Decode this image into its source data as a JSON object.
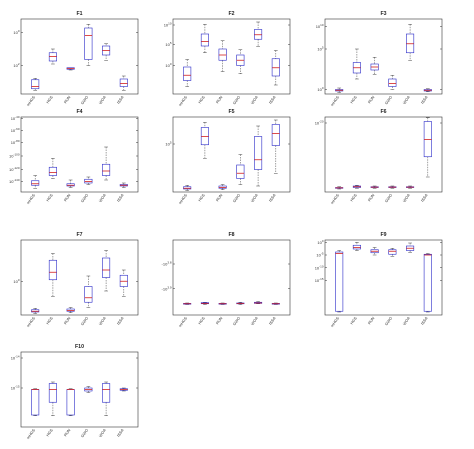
{
  "figure_title": "",
  "colors": {
    "box": "#2a2ac8",
    "median": "#d22020",
    "whisker": "#444444",
    "axis": "#333333"
  },
  "chart_data": [
    {
      "type": "boxplot",
      "title": "F1",
      "yscale": "log",
      "ylim": [
        0,
        1
      ],
      "yticks": [
        {
          "v": 0.82,
          "label": "10^0"
        },
        {
          "v": 0.38,
          "label": "10^2"
        }
      ],
      "categories": [
        "mHGS",
        "HGS",
        "RUN",
        "GWO",
        "WOA",
        "ISSA"
      ],
      "boxes": [
        {
          "wmin": 0.05,
          "q1": 0.07,
          "med": 0.1,
          "q3": 0.19,
          "wmax": 0.21
        },
        {
          "wmin": 0.4,
          "q1": 0.44,
          "med": 0.5,
          "q3": 0.55,
          "wmax": 0.6
        },
        {
          "wmin": 0.32,
          "q1": 0.33,
          "med": 0.34,
          "q3": 0.35,
          "wmax": 0.35
        },
        {
          "wmin": 0.38,
          "q1": 0.46,
          "med": 0.78,
          "q3": 0.88,
          "wmax": 0.93
        },
        {
          "wmin": 0.45,
          "q1": 0.52,
          "med": 0.58,
          "q3": 0.64,
          "wmax": 0.67
        },
        {
          "wmin": 0.05,
          "q1": 0.1,
          "med": 0.14,
          "q3": 0.2,
          "wmax": 0.24
        }
      ]
    },
    {
      "type": "boxplot",
      "title": "F2",
      "yscale": "log",
      "ylim": [
        0,
        1
      ],
      "yticks": [
        {
          "v": 0.92,
          "label": "10^10"
        },
        {
          "v": 0.66,
          "label": "10^5"
        },
        {
          "v": 0.38,
          "label": "10^0"
        }
      ],
      "categories": [
        "mHGS",
        "HGS",
        "RUN",
        "GWO",
        "WOA",
        "ISSA"
      ],
      "boxes": [
        {
          "wmin": 0.1,
          "q1": 0.18,
          "med": 0.25,
          "q3": 0.36,
          "wmax": 0.46
        },
        {
          "wmin": 0.55,
          "q1": 0.64,
          "med": 0.7,
          "q3": 0.8,
          "wmax": 0.93
        },
        {
          "wmin": 0.3,
          "q1": 0.45,
          "med": 0.52,
          "q3": 0.6,
          "wmax": 0.71
        },
        {
          "wmin": 0.27,
          "q1": 0.38,
          "med": 0.45,
          "q3": 0.52,
          "wmax": 0.59
        },
        {
          "wmin": 0.63,
          "q1": 0.73,
          "med": 0.79,
          "q3": 0.86,
          "wmax": 0.96
        },
        {
          "wmin": 0.12,
          "q1": 0.24,
          "med": 0.35,
          "q3": 0.47,
          "wmax": 0.58
        }
      ]
    },
    {
      "type": "boxplot",
      "title": "F3",
      "yscale": "log",
      "ylim": [
        0,
        1
      ],
      "yticks": [
        {
          "v": 0.9,
          "label": "10^10"
        },
        {
          "v": 0.6,
          "label": "10^5"
        },
        {
          "v": 0.06,
          "label": "10^0"
        }
      ],
      "categories": [
        "mHGS",
        "HGS",
        "RUN",
        "GWO",
        "WOA",
        "ISSA"
      ],
      "boxes": [
        {
          "wmin": 0.02,
          "q1": 0.04,
          "med": 0.05,
          "q3": 0.06,
          "wmax": 0.08
        },
        {
          "wmin": 0.2,
          "q1": 0.28,
          "med": 0.35,
          "q3": 0.42,
          "wmax": 0.6
        },
        {
          "wmin": 0.26,
          "q1": 0.32,
          "med": 0.36,
          "q3": 0.4,
          "wmax": 0.49
        },
        {
          "wmin": 0.06,
          "q1": 0.1,
          "med": 0.14,
          "q3": 0.2,
          "wmax": 0.25
        },
        {
          "wmin": 0.45,
          "q1": 0.55,
          "med": 0.67,
          "q3": 0.8,
          "wmax": 0.93
        },
        {
          "wmin": 0.03,
          "q1": 0.04,
          "med": 0.05,
          "q3": 0.06,
          "wmax": 0.07
        }
      ]
    },
    {
      "type": "boxplot",
      "title": "F4",
      "yscale": "log",
      "ylim": [
        0,
        1
      ],
      "yticks": [
        {
          "v": 0.98,
          "label": "10^-40"
        },
        {
          "v": 0.82,
          "label": "10^-60"
        },
        {
          "v": 0.66,
          "label": "10^-80"
        },
        {
          "v": 0.48,
          "label": "10^-100"
        },
        {
          "v": 0.3,
          "label": "10^-120"
        },
        {
          "v": 0.14,
          "label": "10^-140"
        }
      ],
      "categories": [
        "mHGS",
        "HGS",
        "RUN",
        "GWO",
        "WOA",
        "ISSA"
      ],
      "boxes": [
        {
          "wmin": 0.05,
          "q1": 0.09,
          "med": 0.11,
          "q3": 0.15,
          "wmax": 0.22
        },
        {
          "wmin": 0.18,
          "q1": 0.22,
          "med": 0.26,
          "q3": 0.33,
          "wmax": 0.45
        },
        {
          "wmin": 0.06,
          "q1": 0.08,
          "med": 0.09,
          "q3": 0.11,
          "wmax": 0.16
        },
        {
          "wmin": 0.1,
          "q1": 0.12,
          "med": 0.14,
          "q3": 0.17,
          "wmax": 0.2
        },
        {
          "wmin": 0.16,
          "q1": 0.22,
          "med": 0.28,
          "q3": 0.37,
          "wmax": 0.6
        },
        {
          "wmin": 0.06,
          "q1": 0.08,
          "med": 0.09,
          "q3": 0.1,
          "wmax": 0.12
        }
      ]
    },
    {
      "type": "boxplot",
      "title": "F5",
      "yscale": "log",
      "ylim": [
        0,
        1
      ],
      "yticks": [
        {
          "v": 0.64,
          "label": "10^5"
        }
      ],
      "categories": [
        "mHGS",
        "HGS",
        "RUN",
        "GWO",
        "WOA",
        "ISSA"
      ],
      "boxes": [
        {
          "wmin": 0.02,
          "q1": 0.04,
          "med": 0.05,
          "q3": 0.07,
          "wmax": 0.09
        },
        {
          "wmin": 0.45,
          "q1": 0.63,
          "med": 0.74,
          "q3": 0.86,
          "wmax": 0.93
        },
        {
          "wmin": 0.03,
          "q1": 0.05,
          "med": 0.06,
          "q3": 0.08,
          "wmax": 0.1
        },
        {
          "wmin": 0.1,
          "q1": 0.18,
          "med": 0.25,
          "q3": 0.36,
          "wmax": 0.5
        },
        {
          "wmin": 0.08,
          "q1": 0.3,
          "med": 0.43,
          "q3": 0.74,
          "wmax": 0.88
        },
        {
          "wmin": 0.25,
          "q1": 0.62,
          "med": 0.78,
          "q3": 0.9,
          "wmax": 0.96
        }
      ]
    },
    {
      "type": "boxplot",
      "title": "F6",
      "yscale": "log",
      "ylim": [
        0,
        1
      ],
      "yticks": [
        {
          "v": 0.92,
          "label": "10^-20"
        }
      ],
      "categories": [
        "mHGS",
        "HGS",
        "RUN",
        "GWO",
        "WOA",
        "ISSA"
      ],
      "boxes": [
        {
          "wmin": 0.04,
          "q1": 0.05,
          "med": 0.055,
          "q3": 0.06,
          "wmax": 0.07
        },
        {
          "wmin": 0.05,
          "q1": 0.06,
          "med": 0.07,
          "q3": 0.08,
          "wmax": 0.09
        },
        {
          "wmin": 0.05,
          "q1": 0.06,
          "med": 0.065,
          "q3": 0.07,
          "wmax": 0.08
        },
        {
          "wmin": 0.05,
          "q1": 0.06,
          "med": 0.065,
          "q3": 0.07,
          "wmax": 0.08
        },
        {
          "wmin": 0.05,
          "q1": 0.06,
          "med": 0.065,
          "q3": 0.07,
          "wmax": 0.08
        },
        {
          "wmin": 0.2,
          "q1": 0.47,
          "med": 0.7,
          "q3": 0.94,
          "wmax": 0.99
        }
      ]
    },
    {
      "type": "boxplot",
      "title": "F7",
      "yscale": "log",
      "ylim": [
        0,
        1
      ],
      "yticks": [
        {
          "v": 0.45,
          "label": "10^0"
        }
      ],
      "categories": [
        "mHGS",
        "HGS",
        "RUN",
        "GWO",
        "WOA",
        "ISSA"
      ],
      "boxes": [
        {
          "wmin": 0.02,
          "q1": 0.04,
          "med": 0.05,
          "q3": 0.07,
          "wmax": 0.09
        },
        {
          "wmin": 0.25,
          "q1": 0.47,
          "med": 0.57,
          "q3": 0.73,
          "wmax": 0.82
        },
        {
          "wmin": 0.03,
          "q1": 0.05,
          "med": 0.06,
          "q3": 0.08,
          "wmax": 0.1
        },
        {
          "wmin": 0.1,
          "q1": 0.17,
          "med": 0.23,
          "q3": 0.38,
          "wmax": 0.52
        },
        {
          "wmin": 0.32,
          "q1": 0.5,
          "med": 0.6,
          "q3": 0.76,
          "wmax": 0.86
        },
        {
          "wmin": 0.25,
          "q1": 0.38,
          "med": 0.45,
          "q3": 0.53,
          "wmax": 0.6
        }
      ]
    },
    {
      "type": "boxplot",
      "title": "F8",
      "yscale": "log",
      "ylim": [
        0,
        1
      ],
      "yticks": [
        {
          "v": 0.68,
          "label": "-10^3.8"
        },
        {
          "v": 0.35,
          "label": "-10^3.9"
        }
      ],
      "categories": [
        "mHGS",
        "HGS",
        "RUN",
        "GWO",
        "WOA",
        "ISSA"
      ],
      "boxes": [
        {
          "wmin": 0.14,
          "q1": 0.145,
          "med": 0.15,
          "q3": 0.155,
          "wmax": 0.16
        },
        {
          "wmin": 0.14,
          "q1": 0.15,
          "med": 0.155,
          "q3": 0.165,
          "wmax": 0.17
        },
        {
          "wmin": 0.14,
          "q1": 0.145,
          "med": 0.15,
          "q3": 0.155,
          "wmax": 0.16
        },
        {
          "wmin": 0.14,
          "q1": 0.15,
          "med": 0.155,
          "q3": 0.16,
          "wmax": 0.17
        },
        {
          "wmin": 0.15,
          "q1": 0.155,
          "med": 0.16,
          "q3": 0.17,
          "wmax": 0.18
        },
        {
          "wmin": 0.14,
          "q1": 0.145,
          "med": 0.15,
          "q3": 0.155,
          "wmax": 0.16
        }
      ]
    },
    {
      "type": "boxplot",
      "title": "F9",
      "yscale": "log",
      "ylim": [
        0,
        1
      ],
      "yticks": [
        {
          "v": 0.97,
          "label": "10^0"
        },
        {
          "v": 0.8,
          "label": "10^-5"
        },
        {
          "v": 0.63,
          "label": "10^-10"
        },
        {
          "v": 0.46,
          "label": "10^-15"
        }
      ],
      "categories": [
        "mHGS",
        "HGS",
        "RUN",
        "GWO",
        "WOA",
        "ISSA"
      ],
      "boxes": [
        {
          "wmin": 0.04,
          "q1": 0.05,
          "med": 0.82,
          "q3": 0.84,
          "wmax": 0.86
        },
        {
          "wmin": 0.86,
          "q1": 0.88,
          "med": 0.9,
          "q3": 0.93,
          "wmax": 0.97
        },
        {
          "wmin": 0.8,
          "q1": 0.83,
          "med": 0.85,
          "q3": 0.87,
          "wmax": 0.9
        },
        {
          "wmin": 0.78,
          "q1": 0.81,
          "med": 0.85,
          "q3": 0.87,
          "wmax": 0.89
        },
        {
          "wmin": 0.83,
          "q1": 0.86,
          "med": 0.89,
          "q3": 0.92,
          "wmax": 0.96
        },
        {
          "wmin": 0.04,
          "q1": 0.05,
          "med": 0.8,
          "q3": 0.81,
          "wmax": 0.82
        }
      ]
    },
    {
      "type": "boxplot",
      "title": "F10",
      "yscale": "log",
      "ylim": [
        0,
        1
      ],
      "yticks": [
        {
          "v": 0.92,
          "label": "10^-14"
        },
        {
          "v": 0.52,
          "label": "10^-15"
        }
      ],
      "categories": [
        "mHGS",
        "HGS",
        "RUN",
        "GWO",
        "WOA",
        "ISSA"
      ],
      "boxes": [
        {
          "wmin": 0.15,
          "q1": 0.16,
          "med": 0.5,
          "q3": 0.5,
          "wmax": 0.51
        },
        {
          "wmin": 0.15,
          "q1": 0.33,
          "med": 0.5,
          "q3": 0.58,
          "wmax": 0.6
        },
        {
          "wmin": 0.15,
          "q1": 0.16,
          "med": 0.5,
          "q3": 0.5,
          "wmax": 0.51
        },
        {
          "wmin": 0.46,
          "q1": 0.48,
          "med": 0.5,
          "q3": 0.52,
          "wmax": 0.54
        },
        {
          "wmin": 0.15,
          "q1": 0.33,
          "med": 0.5,
          "q3": 0.58,
          "wmax": 0.6
        },
        {
          "wmin": 0.48,
          "q1": 0.49,
          "med": 0.5,
          "q3": 0.51,
          "wmax": 0.52
        }
      ]
    }
  ]
}
